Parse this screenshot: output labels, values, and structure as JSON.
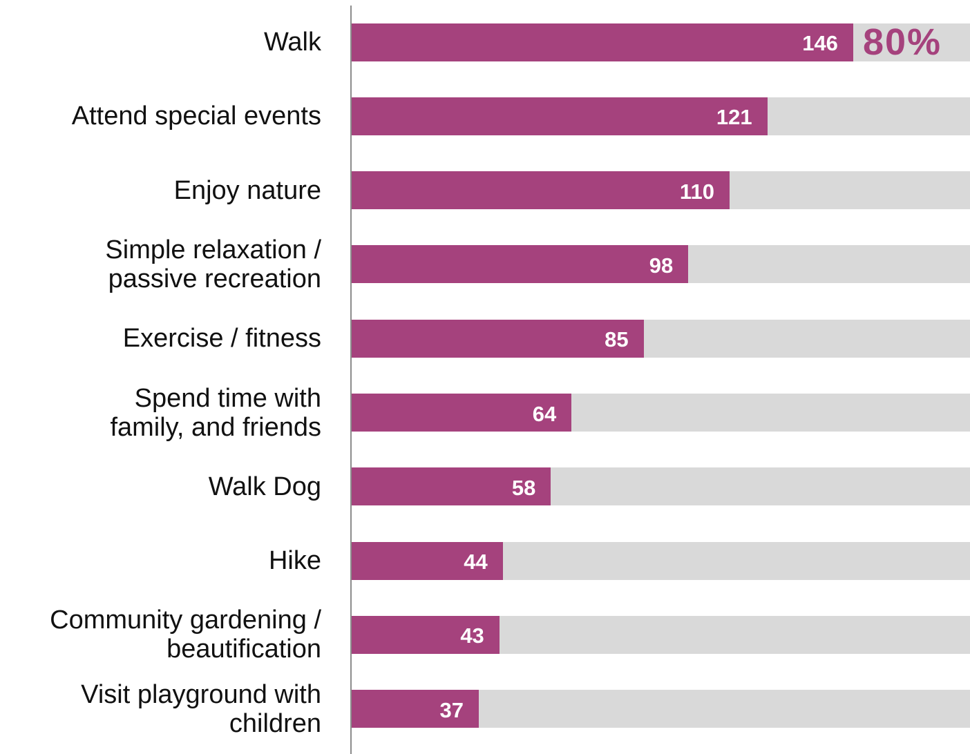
{
  "chart_data": {
    "type": "bar",
    "orientation": "horizontal",
    "categories": [
      "Walk",
      "Attend special events",
      "Enjoy nature",
      "Simple relaxation /\npassive recreation",
      "Exercise / fitness",
      "Spend time with\nfamily, and friends",
      "Walk Dog",
      "Hike",
      "Community gardening /\nbeautification",
      "Visit playground with\nchildren"
    ],
    "values": [
      146,
      121,
      110,
      98,
      85,
      64,
      58,
      44,
      43,
      37
    ],
    "color": "#a5427d",
    "track_color": "#d9d9d9",
    "xlim": [
      0,
      180
    ],
    "annotation": {
      "text": "80%",
      "category_index": 0,
      "color": "#a5427d"
    }
  }
}
